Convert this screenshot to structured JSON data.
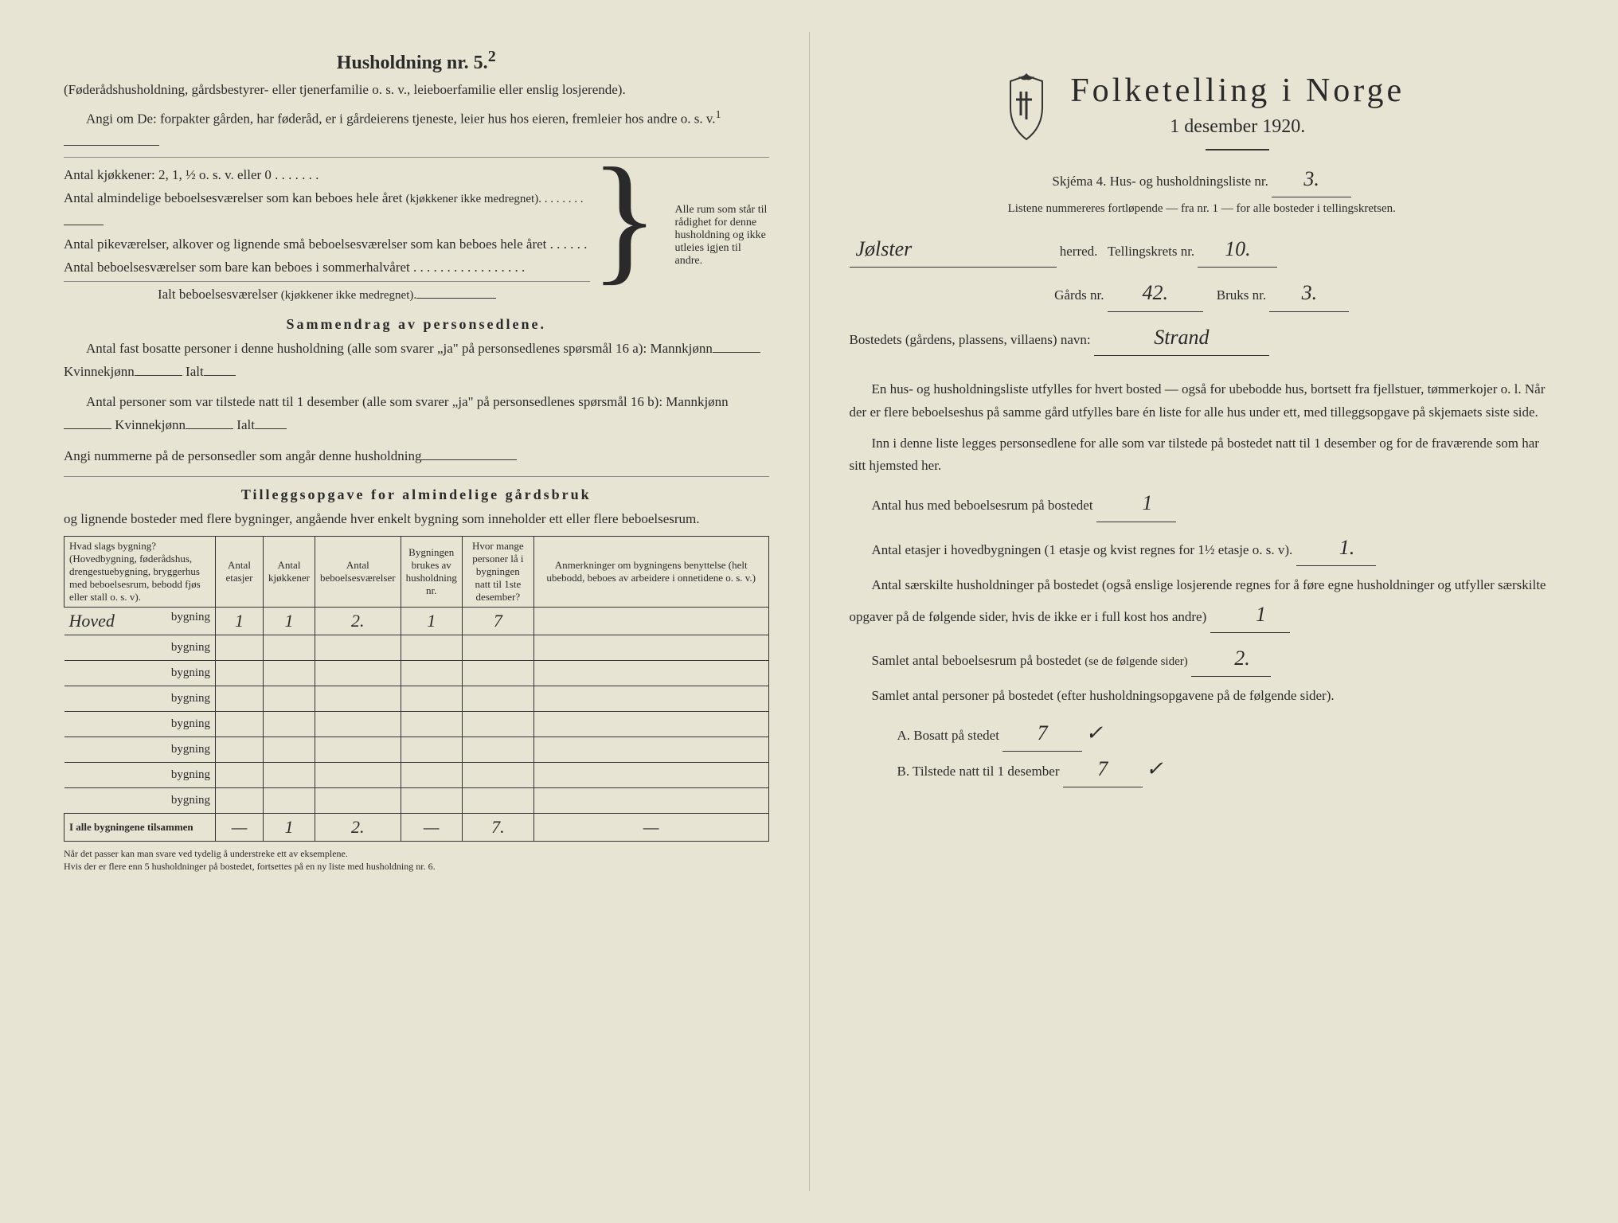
{
  "left": {
    "h5_title": "Husholdning nr. 5.",
    "h5_sup": "2",
    "h5_sub": "(Føderådshusholdning, gårdsbestyrer- eller tjenerfamilie o. s. v., leieboerfamilie eller enslig losjerende).",
    "angi_om": "Angi om De:  forpakter gården, har føderåd, er i gårdeierens tjeneste, leier hus hos eieren, fremleier hos andre o. s. v.",
    "angi_sup": "1",
    "kjokken_line": "Antal kjøkkener: 2, 1, ½ o. s. v. eller 0 . . . . . . .",
    "beb1": "Antal almindelige beboelsesværelser som kan beboes hele året",
    "beb1_note": "(kjøkkener ikke medregnet). . . . . . . .",
    "beb2": "Antal pikeværelser, alkover og lignende små beboelsesværelser som kan beboes hele året . . . . . .",
    "beb3": "Antal beboelsesværelser som bare kan beboes i sommerhalvåret . . . . . . . . . . . . . . . . .",
    "beb_total": "Ialt beboelsesværelser",
    "beb_total_note": "(kjøkkener ikke medregnet).",
    "bracket_text": "Alle rum som står til rådighet for denne husholdning og ikke utleies igjen til andre.",
    "sammendrag_title": "Sammendrag av personsedlene.",
    "sam1": "Antal fast bosatte personer i denne husholdning (alle som svarer „ja\" på personsedlenes spørsmål 16 a):  Mannkjønn",
    "kvinne": "Kvinnekjønn",
    "ialt": "Ialt",
    "sam2": "Antal personer som var tilstede natt til 1 desember (alle som svarer „ja\" på personsedlenes spørsmål 16 b):  Mannkjønn",
    "angi_num": "Angi nummerne på de personsedler som angår denne husholdning",
    "tillegg_title": "Tilleggsopgave for almindelige gårdsbruk",
    "tillegg_sub": "og lignende bosteder med flere bygninger, angående hver enkelt bygning som inneholder ett eller flere beboelsesrum.",
    "table": {
      "headers": [
        "Hvad slags bygning?\n(Hovedbygning, føderådshus, drengestuebygning, bryggerhus med beboelsesrum, bebodd fjøs eller stall o. s. v).",
        "Antal etasjer",
        "Antal kjøkkener",
        "Antal beboelsesværelser",
        "Bygningen brukes av husholdning nr.",
        "Hvor mange personer lå i bygningen natt til 1ste desember?",
        "Anmerkninger om bygningens benyttelse (helt ubebodd, beboes av arbeidere i onnetidene o. s. v.)"
      ],
      "row_label": "bygning",
      "rows": [
        {
          "name": "Hoved",
          "c1": "1",
          "c2": "1",
          "c3": "2.",
          "c4": "1",
          "c5": "7",
          "c6": ""
        },
        {
          "name": "",
          "c1": "",
          "c2": "",
          "c3": "",
          "c4": "",
          "c5": "",
          "c6": ""
        },
        {
          "name": "",
          "c1": "",
          "c2": "",
          "c3": "",
          "c4": "",
          "c5": "",
          "c6": ""
        },
        {
          "name": "",
          "c1": "",
          "c2": "",
          "c3": "",
          "c4": "",
          "c5": "",
          "c6": ""
        },
        {
          "name": "",
          "c1": "",
          "c2": "",
          "c3": "",
          "c4": "",
          "c5": "",
          "c6": ""
        },
        {
          "name": "",
          "c1": "",
          "c2": "",
          "c3": "",
          "c4": "",
          "c5": "",
          "c6": ""
        },
        {
          "name": "",
          "c1": "",
          "c2": "",
          "c3": "",
          "c4": "",
          "c5": "",
          "c6": ""
        },
        {
          "name": "",
          "c1": "",
          "c2": "",
          "c3": "",
          "c4": "",
          "c5": "",
          "c6": ""
        }
      ],
      "total_label": "I alle bygningene tilsammen",
      "totals": {
        "c1": "—",
        "c2": "1",
        "c3": "2.",
        "c4": "—",
        "c5": "7.",
        "c6": "—"
      }
    },
    "footnote": "Når det passer kan man svare ved tydelig å understreke ett av eksemplene.\nHvis der er flere enn 5 husholdninger på bostedet, fortsettes på en ny liste med husholdning nr. 6."
  },
  "right": {
    "title": "Folketelling i Norge",
    "date": "1 desember 1920.",
    "skjema_label": "Skjéma 4.  Hus- og husholdningsliste nr.",
    "skjema_nr": "3.",
    "listene": "Listene nummereres fortløpende — fra nr. 1 — for alle bosteder i tellingskretsen.",
    "herred_value": "Jølster",
    "herred_label": "herred.",
    "tellingskrets_label": "Tellingskrets nr.",
    "tellingskrets_nr": "10.",
    "gards_label": "Gårds nr.",
    "gards_nr": "42.",
    "bruks_label": "Bruks nr.",
    "bruks_nr": "3.",
    "bosted_label": "Bostedets (gårdens, plassens, villaens) navn:",
    "bosted_value": "Strand",
    "para1": "En hus- og husholdningsliste utfylles for hvert bosted — også for ubebodde hus, bortsett fra fjellstuer, tømmerkojer o. l.  Når der er flere beboelseshus på samme gård utfylles bare én liste for alle hus under ett, med tilleggsopgave på skjemaets siste side.",
    "para2": "Inn i denne liste legges personsedlene for alle som var tilstede på bostedet natt til 1 desember og for de fraværende som har sitt hjemsted her.",
    "antal_hus_label": "Antal hus med beboelsesrum på bostedet",
    "antal_hus_val": "1",
    "antal_etasjer_label": "Antal etasjer i hovedbygningen (1 etasje og kvist regnes for 1½ etasje o. s. v).",
    "antal_etasjer_val": "1.",
    "antal_hush_label": "Antal særskilte husholdninger på bostedet (også enslige losjerende regnes for å føre egne husholdninger og utfyller særskilte opgaver på de følgende sider, hvis de ikke er i full kost hos andre)",
    "antal_hush_val": "1",
    "samlet_beb_label": "Samlet antal beboelsesrum på bostedet",
    "samlet_beb_note": "(se de følgende sider)",
    "samlet_beb_val": "2.",
    "samlet_pers_label": "Samlet antal personer på bostedet (efter husholdningsopgavene på de følgende sider).",
    "a_label": "A.  Bosatt på stedet",
    "a_val": "7",
    "b_label": "B.  Tilstede natt til 1 desember",
    "b_val": "7"
  }
}
